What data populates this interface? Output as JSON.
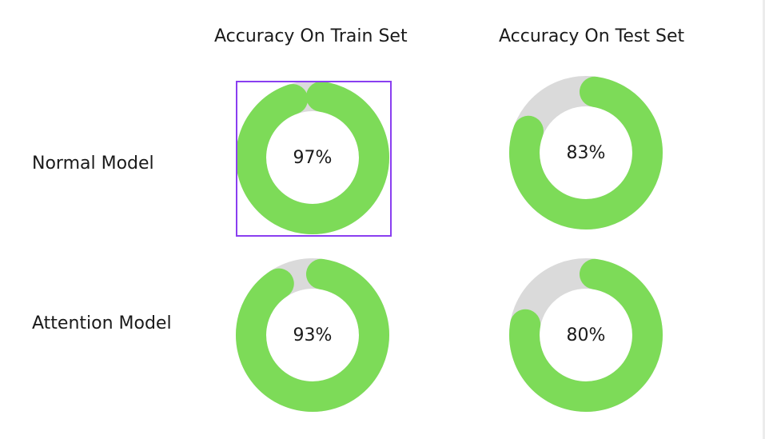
{
  "chart_data": {
    "type": "gauge-grid",
    "columns": [
      "Accuracy On Train Set",
      "Accuracy On Test Set"
    ],
    "rows": [
      "Normal Model",
      "Attention Model"
    ],
    "values": [
      [
        97,
        83
      ],
      [
        93,
        80
      ]
    ],
    "value_labels": [
      [
        "97%",
        "83%"
      ],
      [
        "93%",
        "80%"
      ]
    ],
    "max": 100,
    "unit": "%",
    "fill_color": "#7ddb58",
    "track_color": "#dadada",
    "selection_color": "#8a3ff0",
    "selected": {
      "row": "Normal Model",
      "column": "Accuracy On Train Set"
    }
  }
}
